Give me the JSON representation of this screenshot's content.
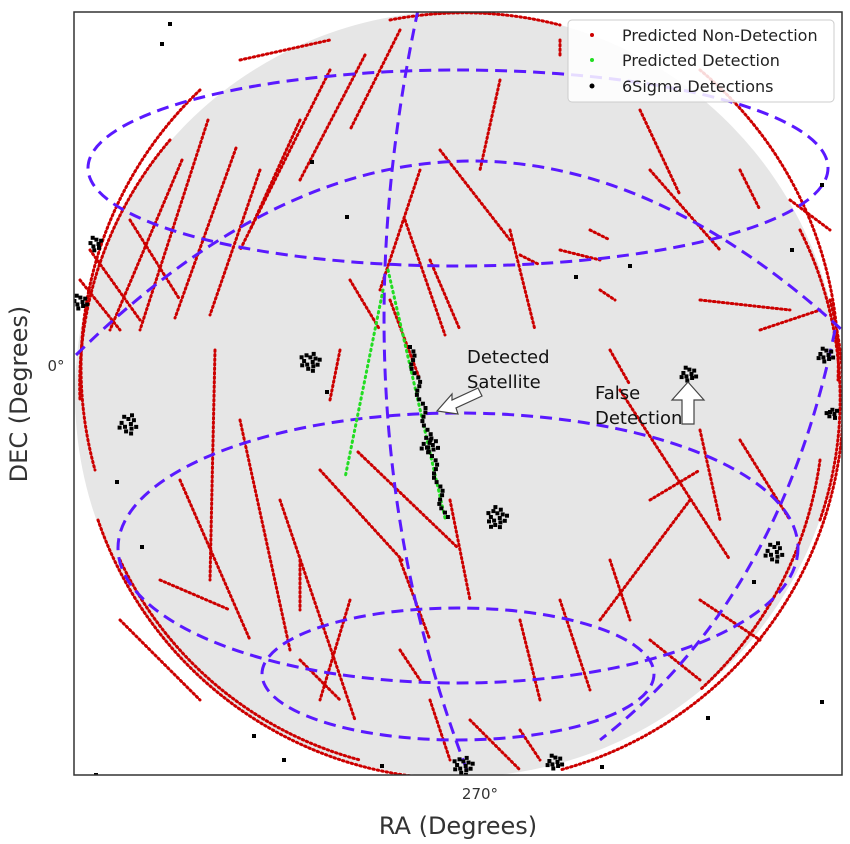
{
  "chart_data": {
    "type": "scatter",
    "projection": "orthographic all-sky (RA/DEC)",
    "xlabel": "RA (Degrees)",
    "ylabel": "DEC (Degrees)",
    "x_tick_labels": [
      "270°"
    ],
    "y_tick_labels": [
      "0°"
    ],
    "grid": true,
    "legend_position": "top-right",
    "colors": {
      "non_detection": "#cc0000",
      "predicted_detection": "#22dd22",
      "detections": "#000000",
      "graticule": "#5a19ff",
      "sky": "#e6e6e6"
    },
    "series": [
      {
        "name": "Predicted Non-Detection",
        "color": "#cc0000"
      },
      {
        "name": "Predicted Detection",
        "color": "#22dd22"
      },
      {
        "name": "6Sigma Detections",
        "color": "#000000"
      }
    ],
    "annotations": [
      {
        "text_lines": [
          "Detected",
          "Satellite"
        ]
      },
      {
        "text_lines": [
          "False",
          "Detection"
        ]
      }
    ]
  }
}
